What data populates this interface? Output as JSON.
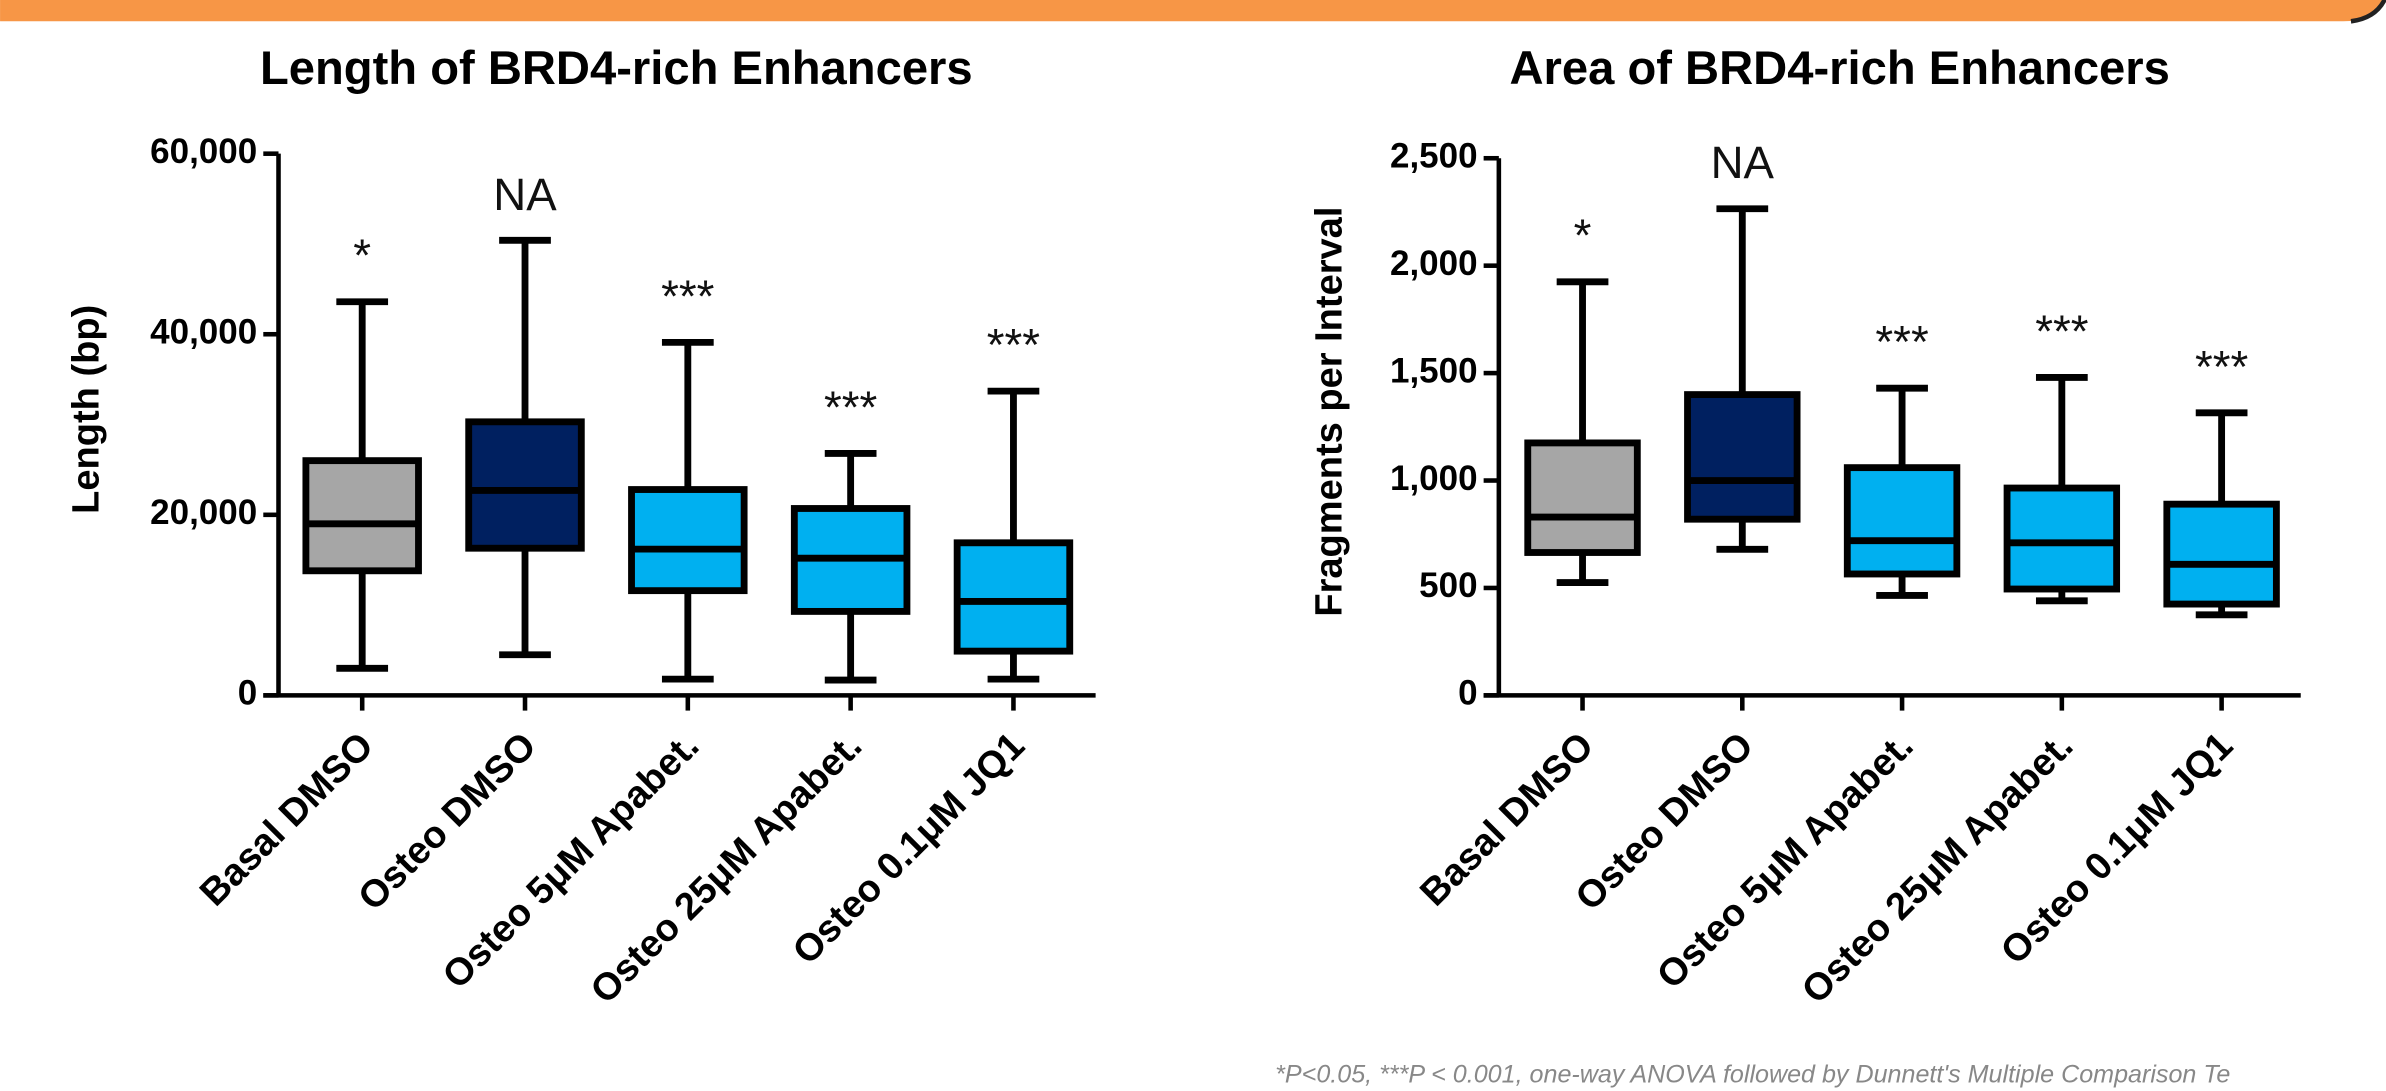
{
  "chart_data": [
    {
      "type": "box",
      "title": "Length of BRD4-rich Enhancers",
      "y_label": "Length (bp)",
      "categories": [
        "Basal DMSO",
        "Osteo DMSO",
        "Osteo 5μM Apabet.",
        "Osteo 25μM Apabet.",
        "Osteo 0.1μM JQ1"
      ],
      "colors": [
        "#a6a6a6",
        "#002060",
        "#00b0f0",
        "#00b0f0",
        "#00b0f0"
      ],
      "whisker_low": [
        3000,
        4500,
        1800,
        1700,
        1800
      ],
      "q1": [
        13800,
        16300,
        11600,
        9300,
        4900
      ],
      "median": [
        19000,
        22700,
        16200,
        15200,
        10400
      ],
      "q3": [
        26000,
        30300,
        22800,
        20700,
        16900
      ],
      "whisker_high": [
        43600,
        50400,
        39100,
        26800,
        33700
      ],
      "annotations": [
        "*",
        "NA",
        "***",
        "***",
        "***"
      ],
      "ylim": [
        0,
        60000
      ],
      "yticks": [
        0,
        {
          "value": 20000,
          "label": "20,000"
        },
        {
          "value": 40000,
          "label": "40,000"
        },
        {
          "value": 60000,
          "label": "60,000"
        }
      ]
    },
    {
      "type": "box",
      "title": "Area of BRD4-rich Enhancers",
      "y_label": "Fragments per Interval",
      "categories": [
        "Basal DMSO",
        "Osteo DMSO",
        "Osteo 5μM Apabet.",
        "Osteo 25μM Apabet.",
        "Osteo 0.1μM JQ1"
      ],
      "colors": [
        "#a6a6a6",
        "#002060",
        "#00b0f0",
        "#00b0f0",
        "#00b0f0"
      ],
      "whisker_low": [
        525,
        680,
        465,
        440,
        375
      ],
      "q1": [
        665,
        820,
        565,
        495,
        425
      ],
      "median": [
        830,
        1000,
        720,
        710,
        610
      ],
      "q3": [
        1175,
        1400,
        1060,
        965,
        890
      ],
      "whisker_high": [
        1925,
        2265,
        1430,
        1480,
        1315
      ],
      "annotations": [
        "*",
        "NA",
        "***",
        "***",
        "***"
      ],
      "ylim": [
        0,
        2500
      ],
      "yticks": [
        0,
        500,
        {
          "value": 1000,
          "label": "1,000"
        },
        {
          "value": 1500,
          "label": "1,500"
        },
        {
          "value": 2000,
          "label": "2,000"
        },
        {
          "value": 2500,
          "label": "2,500"
        }
      ]
    }
  ],
  "footnote": "*P<0.05, ***P < 0.001, one-way ANOVA followed by Dunnett's Multiple Comparison Te"
}
